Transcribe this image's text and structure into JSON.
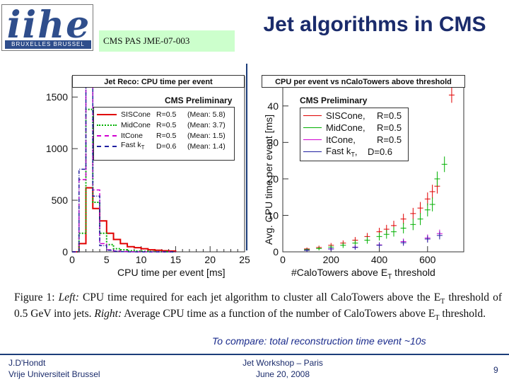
{
  "logo": {
    "text": "iihe",
    "sub": "BRUXELLES BRUSSEL"
  },
  "doc_ref": "CMS PAS JME-07-003",
  "title": "Jet algorithms in CMS",
  "colors": {
    "accent": "#1a2b6b",
    "siscone": "#e00000",
    "midcone": "#00b000",
    "itcone": "#d000d0",
    "fastkt": "#2020a0",
    "ref_bg": "#ccffcc"
  },
  "left_plot": {
    "title": "Jet Reco: CPU time per event",
    "prelim": "CMS Preliminary",
    "legend": [
      {
        "name": "SISCone",
        "param": "R=0.5",
        "mean": "(Mean: 5.8)",
        "color": "#e00000",
        "dash": ""
      },
      {
        "name": "MidCone",
        "param": "R=0.5",
        "mean": "(Mean: 3.7)",
        "color": "#00b000",
        "dash": "3,2"
      },
      {
        "name": "ItCone",
        "param": "R=0.5",
        "mean": "(Mean: 1.5)",
        "color": "#d000d0",
        "dash": "6,3"
      },
      {
        "name": "Fast k",
        "sub": "T",
        "param": "D=0.6",
        "mean": "(Mean: 1.4)",
        "color": "#2020a0",
        "dash": "5,2,1,2"
      }
    ],
    "xlabel": "CPU time per event [ms]",
    "x_ticks": [
      "0",
      "5",
      "10",
      "15",
      "20",
      "25"
    ],
    "y_ticks": [
      "0",
      "500",
      "1000",
      "1500"
    ]
  },
  "right_plot": {
    "title": "CPU per event vs nCaloTowers above threshold",
    "prelim": "CMS Preliminary",
    "legend": [
      {
        "name": "SISCone,",
        "param": "R=0.5",
        "color": "#e00000"
      },
      {
        "name": "MidCone,",
        "param": "R=0.5",
        "color": "#00b000"
      },
      {
        "name": "ItCone,",
        "param": "R=0.5",
        "color": "#d000d0"
      },
      {
        "name": "Fast k",
        "sub": "T",
        "param": ",    D=0.6",
        "color": "#2020a0"
      }
    ],
    "xlabel": "#CaloTowers above E",
    "xlabel_sub": "T",
    "xlabel_end": " threshold",
    "ylabel": "Avg. CPU time per event [ms]",
    "x_ticks": [
      "0",
      "200",
      "400",
      "600"
    ],
    "y_ticks": [
      "0",
      "10",
      "20",
      "30",
      "40"
    ]
  },
  "caption": {
    "fig": "Figure 1:",
    "left_word": "Left:",
    "text1": " CPU time required for each jet algorithm to cluster all CaloTowers above the E",
    "sub1": "T",
    "text2": " threshold of 0.5 GeV into jets.",
    "right_word": "Right:",
    "text3": " Average CPU time as a function of the number of CaloTowers above E",
    "sub2": "T",
    "text4": " threshold."
  },
  "compare_text": "To compare: total reconstruction time event ~10s",
  "footer": {
    "author": "J.D'Hondt",
    "institute": "Vrije Universiteit Brussel",
    "event": "Jet Workshop – Paris",
    "date": "June 20, 2008",
    "page": "9"
  },
  "chart_data": [
    {
      "type": "line",
      "title": "Jet Reco: CPU time per event",
      "xlabel": "CPU time per event [ms]",
      "ylabel": "",
      "xlim": [
        0,
        25
      ],
      "ylim": [
        0,
        1700
      ],
      "x": [
        0.5,
        1.5,
        2.5,
        3.5,
        4.5,
        5.5,
        6.5,
        7.5,
        8.5,
        9.5,
        10.5,
        11.5,
        12.5,
        13.5,
        14.5
      ],
      "series": [
        {
          "name": "SISCone R=0.5 (Mean: 5.8)",
          "values": [
            0,
            80,
            620,
            420,
            300,
            180,
            120,
            80,
            50,
            40,
            30,
            20,
            15,
            10,
            8
          ]
        },
        {
          "name": "MidCone R=0.5 (Mean: 3.7)",
          "values": [
            0,
            180,
            1380,
            480,
            180,
            70,
            30,
            20,
            10,
            8,
            5,
            3,
            2,
            1,
            0
          ]
        },
        {
          "name": "ItCone R=0.5 (Mean: 1.5)",
          "values": [
            0,
            700,
            1600,
            600,
            80,
            20,
            8,
            3,
            1,
            0,
            0,
            0,
            0,
            0,
            0
          ]
        },
        {
          "name": "Fast kT D=0.6 (Mean: 1.4)",
          "values": [
            0,
            800,
            1650,
            540,
            60,
            15,
            5,
            2,
            0,
            0,
            0,
            0,
            0,
            0,
            0
          ]
        }
      ]
    },
    {
      "type": "scatter",
      "title": "CPU per event vs nCaloTowers above threshold",
      "xlabel": "#CaloTowers above ET threshold",
      "ylabel": "Avg. CPU time per event [ms]",
      "xlim": [
        0,
        750
      ],
      "ylim": [
        0,
        45
      ],
      "series": [
        {
          "name": "SISCone, R=0.5",
          "x": [
            100,
            150,
            200,
            250,
            300,
            350,
            400,
            430,
            460,
            500,
            540,
            570,
            600,
            620,
            640,
            700
          ],
          "y": [
            0.8,
            1.2,
            1.8,
            2.4,
            3.2,
            4.2,
            5.5,
            6.2,
            7.2,
            9.0,
            10.5,
            12.0,
            14.5,
            16.5,
            18,
            43
          ]
        },
        {
          "name": "MidCone, R=0.5",
          "x": [
            100,
            150,
            200,
            250,
            300,
            350,
            400,
            430,
            460,
            500,
            540,
            570,
            600,
            620,
            640,
            670
          ],
          "y": [
            0.6,
            0.9,
            1.3,
            1.8,
            2.4,
            3.2,
            4.2,
            4.8,
            5.5,
            6.5,
            7.5,
            9.0,
            11.5,
            13.0,
            20,
            24
          ]
        },
        {
          "name": "ItCone, R=0.5",
          "x": [
            100,
            200,
            300,
            400,
            500,
            600,
            650
          ],
          "y": [
            0.4,
            0.8,
            1.3,
            1.9,
            2.8,
            3.8,
            5.0
          ]
        },
        {
          "name": "Fast kT, D=0.6",
          "x": [
            100,
            200,
            300,
            400,
            500,
            600,
            650
          ],
          "y": [
            0.4,
            0.8,
            1.2,
            1.8,
            2.5,
            3.5,
            4.5
          ]
        }
      ]
    }
  ]
}
